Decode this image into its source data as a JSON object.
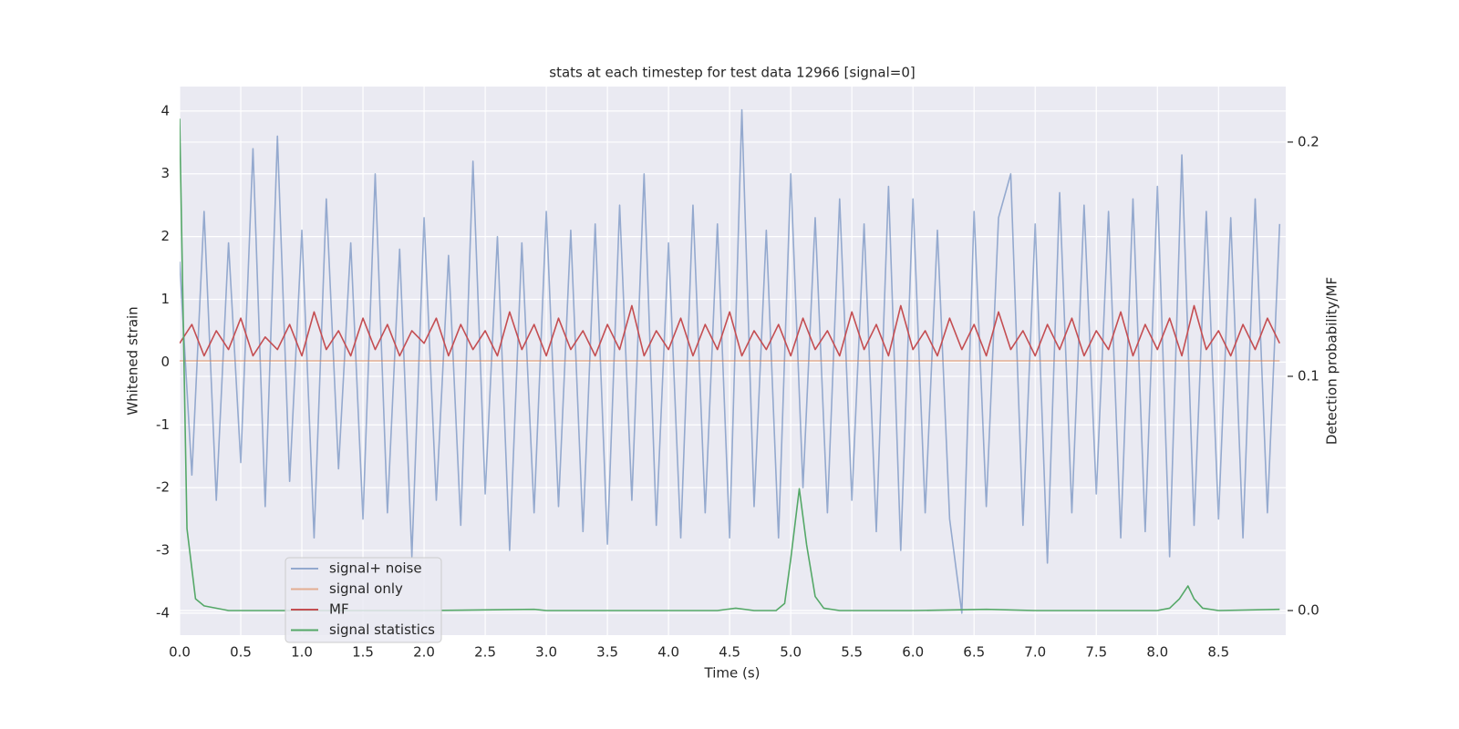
{
  "chart_data": {
    "type": "line",
    "title": "stats at each timestep for test data 12966 [signal=0]",
    "xlabel": "Time (s)",
    "ylabel": "Whitened strain",
    "y2label": "Detection probability/MF",
    "xlim": [
      0,
      9.05
    ],
    "ylim": [
      -4.35,
      4.39
    ],
    "y2lim": [
      -0.0105,
      0.2237
    ],
    "xticks": [
      {
        "value": 0,
        "label": "0.0"
      },
      0.5,
      {
        "value": 1,
        "label": "1.0"
      },
      1.5,
      {
        "value": 2,
        "label": "2.0"
      },
      2.5,
      {
        "value": 3,
        "label": "3.0"
      },
      3.5,
      {
        "value": 4,
        "label": "4.0"
      },
      4.5,
      {
        "value": 5,
        "label": "5.0"
      },
      5.5,
      {
        "value": 6,
        "label": "6.0"
      },
      6.5,
      {
        "value": 7,
        "label": "7.0"
      },
      7.5,
      {
        "value": 8,
        "label": "8.0"
      },
      8.5
    ],
    "yticks": [
      -4,
      -3,
      -2,
      -1,
      0,
      1,
      2,
      3,
      4
    ],
    "y2ticks": [
      {
        "value": 0,
        "label": "0.0"
      },
      0.1,
      0.2
    ],
    "grid": true,
    "legend": "lower left",
    "series": [
      {
        "name": "signal+ noise",
        "color": "#4c72b0",
        "opacity": 0.55,
        "x": [
          0,
          0.1,
          0.2,
          0.3,
          0.4,
          0.5,
          0.6,
          0.7,
          0.8,
          0.9,
          1,
          1.1,
          1.2,
          1.3,
          1.4,
          1.5,
          1.6,
          1.7,
          1.8,
          1.9,
          2,
          2.1,
          2.2,
          2.3,
          2.4,
          2.5,
          2.6,
          2.7,
          2.8,
          2.9,
          3,
          3.1,
          3.2,
          3.3,
          3.4,
          3.5,
          3.6,
          3.7,
          3.8,
          3.9,
          4,
          4.1,
          4.2,
          4.3,
          4.4,
          4.5,
          4.6,
          4.7,
          4.8,
          4.9,
          5,
          5.1,
          5.2,
          5.3,
          5.4,
          5.5,
          5.6,
          5.7,
          5.8,
          5.9,
          6,
          6.1,
          6.2,
          6.3,
          6.4,
          6.5,
          6.6,
          6.7,
          6.8,
          6.9,
          7,
          7.1,
          7.2,
          7.3,
          7.4,
          7.5,
          7.6,
          7.7,
          7.8,
          7.9,
          8,
          8.1,
          8.2,
          8.3,
          8.4,
          8.5,
          8.6,
          8.7,
          8.8,
          8.9,
          9
        ],
        "values": [
          1.6,
          -1.8,
          2.4,
          -2.2,
          1.9,
          -1.6,
          3.4,
          -2.3,
          3.6,
          -1.9,
          2.1,
          -2.8,
          2.6,
          -1.7,
          1.9,
          -2.5,
          3,
          -2.4,
          1.8,
          -3.1,
          2.3,
          -2.2,
          1.7,
          -2.6,
          3.2,
          -2.1,
          2,
          -3,
          1.9,
          -2.4,
          2.4,
          -2.3,
          2.1,
          -2.7,
          2.2,
          -2.9,
          2.5,
          -2.2,
          3,
          -2.6,
          1.9,
          -2.8,
          2.5,
          -2.4,
          2.2,
          -2.8,
          4.02,
          -2.3,
          2.1,
          -2.8,
          3,
          -2,
          2.3,
          -2.4,
          2.6,
          -2.2,
          2.2,
          -2.7,
          2.8,
          -3,
          2.6,
          -2.4,
          2.1,
          -2.5,
          -4,
          2.4,
          -2.3,
          2.3,
          3,
          -2.6,
          2.2,
          -3.2,
          2.7,
          -2.4,
          2.5,
          -2.1,
          2.4,
          -2.8,
          2.6,
          -2.7,
          2.8,
          -3.1,
          3.3,
          -2.6,
          2.4,
          -2.5,
          2.3,
          -2.8,
          2.6,
          -2.4,
          2.2
        ]
      },
      {
        "name": "signal only",
        "color": "#dd8452",
        "opacity": 0.6,
        "x": [
          0,
          9
        ],
        "values": [
          0.02,
          0.02
        ]
      },
      {
        "name": "MF",
        "color": "#c44e52",
        "opacity": 1,
        "x": [
          0,
          0.1,
          0.2,
          0.3,
          0.4,
          0.5,
          0.6,
          0.7,
          0.8,
          0.9,
          1,
          1.1,
          1.2,
          1.3,
          1.4,
          1.5,
          1.6,
          1.7,
          1.8,
          1.9,
          2,
          2.1,
          2.2,
          2.3,
          2.4,
          2.5,
          2.6,
          2.7,
          2.8,
          2.9,
          3,
          3.1,
          3.2,
          3.3,
          3.4,
          3.5,
          3.6,
          3.7,
          3.8,
          3.9,
          4,
          4.1,
          4.2,
          4.3,
          4.4,
          4.5,
          4.6,
          4.7,
          4.8,
          4.9,
          5,
          5.1,
          5.2,
          5.3,
          5.4,
          5.5,
          5.6,
          5.7,
          5.8,
          5.9,
          6,
          6.1,
          6.2,
          6.3,
          6.4,
          6.5,
          6.6,
          6.7,
          6.8,
          6.9,
          7,
          7.1,
          7.2,
          7.3,
          7.4,
          7.5,
          7.6,
          7.7,
          7.8,
          7.9,
          8,
          8.1,
          8.2,
          8.3,
          8.4,
          8.5,
          8.6,
          8.7,
          8.8,
          8.9,
          9
        ],
        "values": [
          0.3,
          0.6,
          0.1,
          0.5,
          0.2,
          0.7,
          0.1,
          0.4,
          0.2,
          0.6,
          0.1,
          0.8,
          0.2,
          0.5,
          0.1,
          0.7,
          0.2,
          0.6,
          0.1,
          0.5,
          0.3,
          0.7,
          0.1,
          0.6,
          0.2,
          0.5,
          0.1,
          0.8,
          0.2,
          0.6,
          0.1,
          0.7,
          0.2,
          0.5,
          0.1,
          0.6,
          0.2,
          0.9,
          0.1,
          0.5,
          0.2,
          0.7,
          0.1,
          0.6,
          0.2,
          0.8,
          0.1,
          0.5,
          0.2,
          0.6,
          0.1,
          0.7,
          0.2,
          0.5,
          0.1,
          0.8,
          0.2,
          0.6,
          0.1,
          0.9,
          0.2,
          0.5,
          0.1,
          0.7,
          0.2,
          0.6,
          0.1,
          0.8,
          0.2,
          0.5,
          0.1,
          0.6,
          0.2,
          0.7,
          0.1,
          0.5,
          0.2,
          0.8,
          0.1,
          0.6,
          0.2,
          0.7,
          0.1,
          0.9,
          0.2,
          0.5,
          0.1,
          0.6,
          0.2,
          0.7,
          0.3
        ]
      },
      {
        "name": "signal statistics",
        "color": "#55a868",
        "opacity": 1,
        "axis": "y2",
        "x": [
          0,
          0.06,
          0.13,
          0.2,
          0.4,
          1,
          2,
          2.9,
          3,
          4,
          4.4,
          4.55,
          4.7,
          4.88,
          4.95,
          5,
          5.07,
          5.13,
          5.2,
          5.27,
          5.4,
          6,
          6.6,
          7,
          8,
          8.1,
          8.18,
          8.25,
          8.3,
          8.37,
          8.5,
          9
        ],
        "values": [
          0.21,
          0.035,
          0.005,
          0.002,
          0,
          0,
          0,
          0.0005,
          0,
          0,
          0,
          0.001,
          0,
          0,
          0.003,
          0.022,
          0.052,
          0.028,
          0.006,
          0.001,
          0,
          0,
          0.0005,
          0,
          0,
          0.001,
          0.005,
          0.0105,
          0.005,
          0.001,
          0,
          0.0005
        ]
      }
    ]
  }
}
